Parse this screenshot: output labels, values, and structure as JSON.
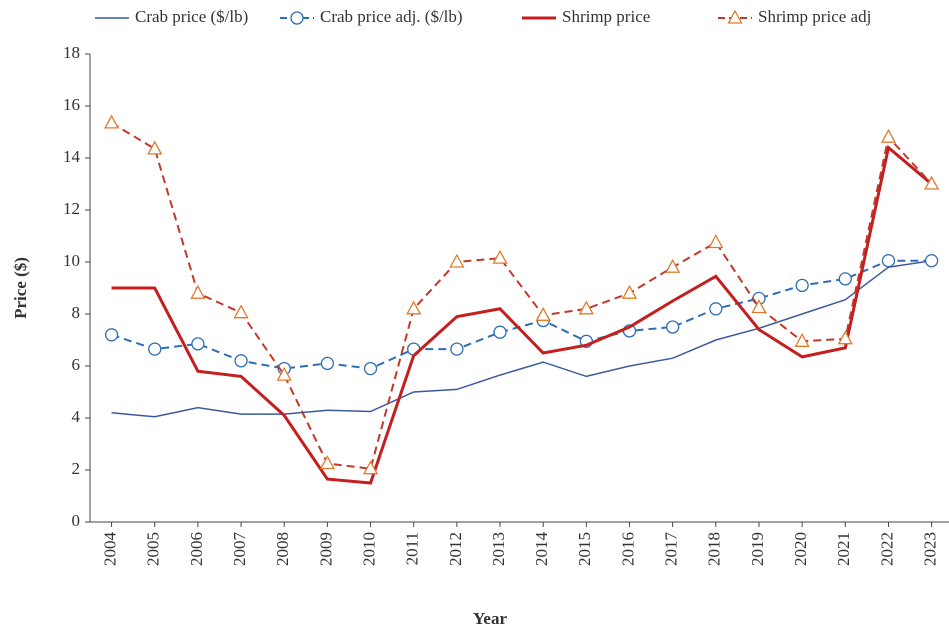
{
  "chart_data": {
    "type": "line",
    "x_label": "Year",
    "y_label": "Price ($)",
    "categories": [
      "2004",
      "2005",
      "2006",
      "2007",
      "2008",
      "2009",
      "2010",
      "2011",
      "2012",
      "2013",
      "2014",
      "2015",
      "2016",
      "2017",
      "2018",
      "2019",
      "2020",
      "2021",
      "2022",
      "2023"
    ],
    "series": [
      {
        "name": "Crab price ($/lb)",
        "color": "#3c5a9e",
        "dash": false,
        "marker": "none",
        "width": 1.5,
        "values": [
          4.2,
          4.05,
          4.4,
          4.15,
          4.15,
          4.3,
          4.25,
          5.0,
          5.1,
          5.65,
          6.15,
          5.6,
          6.0,
          6.3,
          7.0,
          7.45,
          8.0,
          8.55,
          9.8,
          10.05
        ]
      },
      {
        "name": "Crab price adj. ($/lb)",
        "color": "#2f6db5",
        "dash": true,
        "marker": "circle",
        "width": 2,
        "values": [
          7.2,
          6.65,
          6.85,
          6.2,
          5.9,
          6.1,
          5.9,
          6.65,
          6.65,
          7.3,
          7.75,
          6.95,
          7.35,
          7.5,
          8.2,
          8.6,
          9.1,
          9.35,
          10.05,
          10.05
        ]
      },
      {
        "name": "Shrimp price",
        "color": "#c41e1e",
        "dash": false,
        "marker": "none",
        "width": 3,
        "values": [
          9.0,
          9.0,
          5.8,
          5.6,
          4.1,
          1.65,
          1.5,
          6.4,
          7.9,
          8.2,
          6.5,
          6.8,
          7.5,
          8.5,
          9.45,
          7.4,
          6.35,
          6.7,
          14.4,
          13.0
        ]
      },
      {
        "name": "Shrimp price adj",
        "color": "#c0392b",
        "marker_color": "#e07b2a",
        "dash": true,
        "marker": "triangle",
        "width": 2,
        "values": [
          15.35,
          14.35,
          8.8,
          8.05,
          5.65,
          2.25,
          2.05,
          8.2,
          10.0,
          10.15,
          7.95,
          8.2,
          8.8,
          9.8,
          10.75,
          8.25,
          6.95,
          7.05,
          14.8,
          13.0
        ]
      }
    ],
    "ylim": [
      0,
      18
    ],
    "yticks": [
      0,
      2,
      4,
      6,
      8,
      10,
      12,
      14,
      16,
      18
    ],
    "grid": false,
    "legend": "top"
  }
}
